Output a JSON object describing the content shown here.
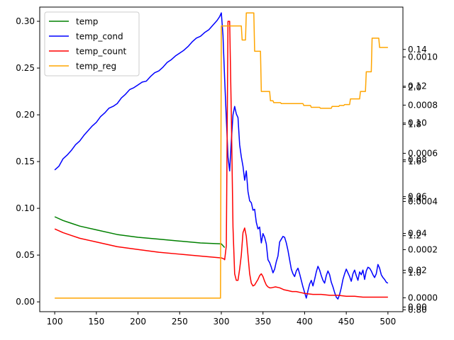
{
  "chart_data": {
    "type": "line",
    "title": "",
    "xlabel": "",
    "ylabel": "",
    "legend_placement": "upper-left",
    "grid": false,
    "x_ticks": [
      "100",
      "150",
      "200",
      "250",
      "300",
      "350",
      "400",
      "450",
      "500"
    ],
    "x_tick_values": [
      100,
      150,
      200,
      250,
      300,
      350,
      400,
      450,
      500
    ],
    "xlim": [
      82,
      518
    ],
    "y_left": {
      "ylim": [
        -0.0105,
        0.3152
      ],
      "ticks": [
        "0.00",
        "0.05",
        "0.10",
        "0.15",
        "0.20",
        "0.25",
        "0.30"
      ],
      "tick_values": [
        0,
        0.05,
        0.1,
        0.15,
        0.2,
        0.25,
        0.3
      ]
    },
    "y_right_axes": [
      {
        "series": "temp_cond",
        "ylim": [
          -0.0025,
          0.163
        ],
        "ticks": [
          "0.00",
          "0.02",
          "0.04",
          "0.06",
          "0.08",
          "0.10",
          "0.12",
          "0.14"
        ],
        "tick_values": [
          0,
          0.02,
          0.04,
          0.06,
          0.08,
          0.1,
          0.12,
          0.14
        ]
      },
      {
        "series": "temp_count",
        "ylim": [
          -5.75e-05,
          0.001207
        ],
        "ticks": [
          "0.0000",
          "0.0002",
          "0.0004",
          "0.0006",
          "0.0008",
          "0.0010"
        ],
        "tick_values": [
          0,
          0.0002,
          0.0004,
          0.0006,
          0.0008,
          0.001
        ]
      },
      {
        "series": "temp_reg",
        "ylim": [
          0.79,
          2.433
        ],
        "ticks": [
          "0.80",
          "1.0",
          "1.2",
          "1.4",
          "1.6",
          "1.8",
          "2.0"
        ],
        "tick_values": [
          0.8,
          1.0,
          1.2,
          1.4,
          1.6,
          1.8,
          2.0
        ]
      }
    ],
    "series": [
      {
        "name": "temp",
        "color": "#008000",
        "axis": "left",
        "x": [
          100,
          110,
          120,
          130,
          150,
          175,
          200,
          225,
          250,
          275,
          300,
          304
        ],
        "y": [
          0.091,
          0.087,
          0.084,
          0.081,
          0.077,
          0.072,
          0.069,
          0.067,
          0.065,
          0.063,
          0.062,
          0.058
        ]
      },
      {
        "name": "temp_cond",
        "color": "#0000ff",
        "axis": "left",
        "x": [
          100,
          105,
          110,
          115,
          120,
          125,
          130,
          135,
          140,
          145,
          150,
          155,
          160,
          165,
          170,
          175,
          180,
          185,
          190,
          195,
          200,
          205,
          210,
          215,
          220,
          225,
          230,
          235,
          240,
          245,
          250,
          255,
          260,
          265,
          270,
          275,
          280,
          285,
          290,
          295,
          298,
          300,
          302,
          304,
          306,
          308,
          310,
          312,
          314,
          316,
          318,
          320,
          322,
          324,
          326,
          328,
          330,
          332,
          334,
          336,
          338,
          340,
          342,
          344,
          346,
          348,
          350,
          352,
          354,
          356,
          358,
          360,
          362,
          364,
          366,
          368,
          370,
          372,
          374,
          376,
          378,
          380,
          382,
          384,
          386,
          388,
          390,
          392,
          394,
          396,
          398,
          400,
          402,
          404,
          406,
          408,
          410,
          412,
          414,
          416,
          418,
          420,
          422,
          424,
          426,
          428,
          430,
          432,
          434,
          436,
          438,
          440,
          442,
          444,
          446,
          448,
          450,
          452,
          454,
          456,
          458,
          460,
          462,
          464,
          466,
          468,
          470,
          472,
          474,
          476,
          478,
          480,
          482,
          484,
          486,
          488,
          490,
          492,
          494,
          496,
          498,
          500
        ],
        "y": [
          0.141,
          0.145,
          0.153,
          0.157,
          0.162,
          0.168,
          0.172,
          0.178,
          0.183,
          0.188,
          0.192,
          0.198,
          0.202,
          0.207,
          0.209,
          0.212,
          0.218,
          0.222,
          0.227,
          0.229,
          0.232,
          0.235,
          0.236,
          0.241,
          0.245,
          0.247,
          0.251,
          0.256,
          0.259,
          0.263,
          0.266,
          0.269,
          0.273,
          0.278,
          0.282,
          0.284,
          0.288,
          0.291,
          0.296,
          0.301,
          0.305,
          0.309,
          0.285,
          0.238,
          0.196,
          0.155,
          0.14,
          0.172,
          0.2,
          0.209,
          0.201,
          0.197,
          0.168,
          0.155,
          0.145,
          0.13,
          0.14,
          0.118,
          0.108,
          0.106,
          0.098,
          0.099,
          0.085,
          0.078,
          0.08,
          0.063,
          0.073,
          0.069,
          0.062,
          0.045,
          0.042,
          0.037,
          0.031,
          0.035,
          0.043,
          0.049,
          0.064,
          0.067,
          0.07,
          0.069,
          0.063,
          0.055,
          0.045,
          0.035,
          0.03,
          0.027,
          0.033,
          0.036,
          0.03,
          0.023,
          0.016,
          0.01,
          0.004,
          0.012,
          0.019,
          0.023,
          0.017,
          0.024,
          0.032,
          0.038,
          0.034,
          0.028,
          0.023,
          0.02,
          0.028,
          0.033,
          0.029,
          0.021,
          0.016,
          0.01,
          0.005,
          0.003,
          0.008,
          0.015,
          0.024,
          0.03,
          0.035,
          0.031,
          0.027,
          0.022,
          0.03,
          0.034,
          0.028,
          0.023,
          0.032,
          0.029,
          0.034,
          0.024,
          0.033,
          0.037,
          0.036,
          0.033,
          0.029,
          0.026,
          0.03,
          0.04,
          0.036,
          0.029,
          0.026,
          0.024,
          0.021,
          0.02
        ]
      },
      {
        "name": "temp_count",
        "color": "#ff0000",
        "axis": "left",
        "x": [
          100,
          110,
          120,
          130,
          150,
          175,
          200,
          225,
          250,
          275,
          300,
          303,
          304,
          306,
          308,
          310,
          312,
          314,
          316,
          318,
          320,
          322,
          324,
          326,
          328,
          330,
          332,
          334,
          336,
          338,
          340,
          342,
          344,
          346,
          348,
          350,
          352,
          354,
          356,
          358,
          360,
          365,
          370,
          375,
          380,
          385,
          390,
          395,
          400,
          410,
          420,
          430,
          440,
          450,
          460,
          470,
          480,
          490,
          500
        ],
        "y": [
          0.078,
          0.074,
          0.071,
          0.068,
          0.064,
          0.059,
          0.056,
          0.053,
          0.051,
          0.049,
          0.047,
          0.046,
          0.045,
          0.06,
          0.3,
          0.3,
          0.2,
          0.08,
          0.03,
          0.023,
          0.023,
          0.035,
          0.05,
          0.074,
          0.079,
          0.07,
          0.05,
          0.03,
          0.02,
          0.017,
          0.018,
          0.021,
          0.024,
          0.028,
          0.03,
          0.027,
          0.022,
          0.018,
          0.016,
          0.015,
          0.015,
          0.016,
          0.015,
          0.013,
          0.012,
          0.011,
          0.011,
          0.01,
          0.009,
          0.008,
          0.008,
          0.007,
          0.007,
          0.006,
          0.006,
          0.005,
          0.005,
          0.005,
          0.005
        ]
      },
      {
        "name": "temp_reg",
        "color": "#ffa500",
        "axis": "left",
        "x": [
          100,
          299,
          299.5,
          300,
          314,
          315,
          324,
          325,
          329,
          330,
          339,
          340,
          347,
          348,
          358,
          359,
          362,
          363,
          371,
          372,
          381,
          382,
          398,
          399,
          407,
          408,
          418,
          419,
          426,
          427,
          432,
          433,
          441,
          442,
          447,
          448,
          454,
          455,
          466,
          467,
          473,
          474,
          480,
          481,
          489,
          490,
          500
        ],
        "y": [
          0.004,
          0.004,
          0.15,
          0.295,
          0.295,
          0.295,
          0.295,
          0.28,
          0.28,
          0.309,
          0.309,
          0.268,
          0.268,
          0.225,
          0.225,
          0.215,
          0.215,
          0.213,
          0.213,
          0.212,
          0.212,
          0.212,
          0.212,
          0.21,
          0.21,
          0.208,
          0.208,
          0.207,
          0.207,
          0.207,
          0.207,
          0.209,
          0.209,
          0.21,
          0.21,
          0.211,
          0.211,
          0.217,
          0.217,
          0.225,
          0.225,
          0.246,
          0.246,
          0.282,
          0.282,
          0.272,
          0.272
        ]
      }
    ]
  }
}
